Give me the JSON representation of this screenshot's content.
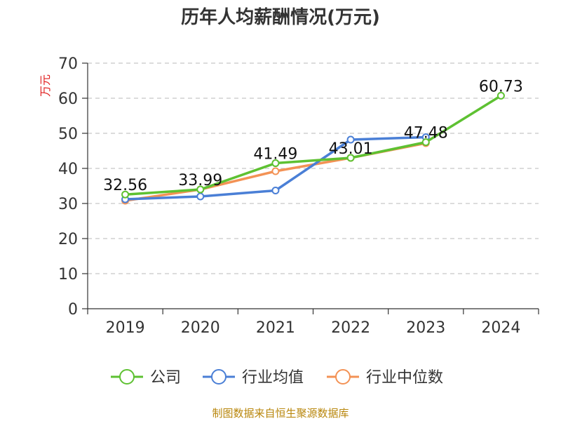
{
  "chart_data": {
    "type": "line",
    "title": "历年人均薪酬情况(万元)",
    "ylabel": "万元",
    "xlabel": "",
    "categories": [
      "2019",
      "2020",
      "2021",
      "2022",
      "2023",
      "2024"
    ],
    "ylim": [
      0,
      70
    ],
    "yticks": [
      0,
      10,
      20,
      30,
      40,
      50,
      60,
      70
    ],
    "grid": true,
    "legend_position": "bottom",
    "series": [
      {
        "name": "公司",
        "color": "#5ec132",
        "values": [
          32.56,
          33.99,
          41.49,
          43.01,
          47.48,
          60.73
        ],
        "labels": [
          "32.56",
          "33.99",
          "41.49",
          "43.01",
          "47.48",
          "60.73"
        ]
      },
      {
        "name": "行业均值",
        "color": "#4a7fd6",
        "values": [
          31.2,
          32.0,
          33.7,
          48.2,
          48.9,
          null
        ]
      },
      {
        "name": "行业中位数",
        "color": "#f39255",
        "values": [
          30.8,
          34.0,
          39.2,
          43.0,
          47.2,
          null
        ]
      }
    ]
  },
  "source_note": "制图数据来自恒生聚源数据库"
}
